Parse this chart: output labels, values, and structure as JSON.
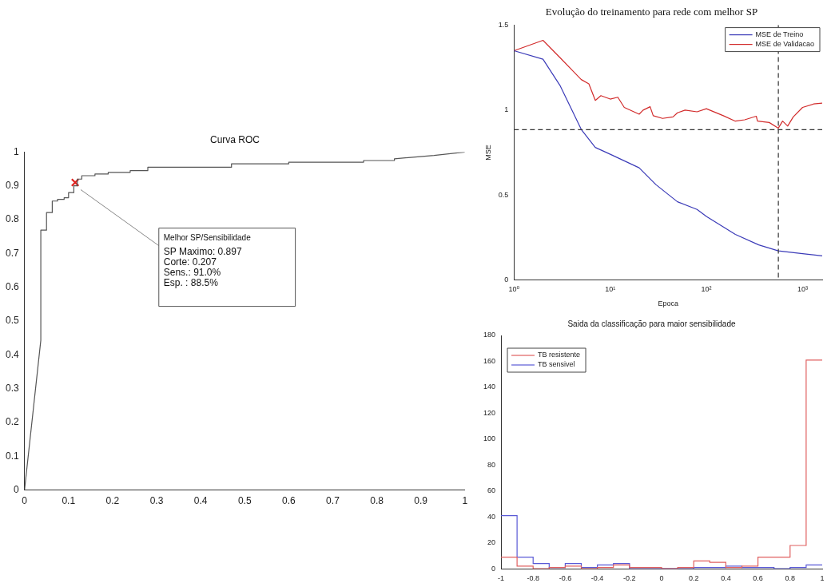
{
  "chart_data": [
    {
      "type": "line",
      "title": "Curva ROC",
      "xlim": [
        0,
        1
      ],
      "xticks": [
        0,
        0.1,
        0.2,
        0.3,
        0.4,
        0.5,
        0.6,
        0.7,
        0.8,
        0.9,
        1
      ],
      "ylim": [
        0,
        1
      ],
      "yticks": [
        0,
        0.1,
        0.2,
        0.3,
        0.4,
        0.5,
        0.6,
        0.7,
        0.8,
        0.9,
        1
      ],
      "grid": false,
      "legend": false,
      "series": [
        {
          "color": "#555555",
          "x": [
            0,
            0.037,
            0.037,
            0.05,
            0.05,
            0.063,
            0.063,
            0.075,
            0.075,
            0.09,
            0.09,
            0.1,
            0.1,
            0.112,
            0.112,
            0.12,
            0.12,
            0.13,
            0.13,
            0.16,
            0.16,
            0.19,
            0.19,
            0.24,
            0.24,
            0.28,
            0.28,
            0.47,
            0.47,
            0.6,
            0.6,
            0.77,
            0.77,
            0.84,
            0.84,
            0.93,
            1
          ],
          "values": [
            0,
            0.443,
            0.769,
            0.769,
            0.821,
            0.821,
            0.855,
            0.855,
            0.86,
            0.86,
            0.865,
            0.865,
            0.88,
            0.88,
            0.9,
            0.9,
            0.92,
            0.92,
            0.93,
            0.93,
            0.935,
            0.935,
            0.94,
            0.94,
            0.945,
            0.945,
            0.955,
            0.955,
            0.965,
            0.965,
            0.97,
            0.97,
            0.975,
            0.975,
            0.98,
            0.99,
            1
          ]
        },
        {
          "type": "scatter",
          "marker": "cross",
          "color": "#e0201c",
          "x": [
            0.115
          ],
          "values": [
            0.91
          ]
        }
      ],
      "annotations": [
        "Melhor SP/Sensibilidade",
        "SP Maximo: 0.897",
        "Corte: 0.207",
        "Sens.: 91.0%",
        "Esp. : 88.5%"
      ]
    },
    {
      "type": "line",
      "title": "Evolução do treinamento para rede com melhor SP",
      "xlabel": "Epoca",
      "ylabel": "MSE",
      "log": "x",
      "xlim": [
        1,
        1600
      ],
      "xticks": [
        {
          "value": 1,
          "label": "10⁰"
        },
        {
          "value": 10,
          "label": "10¹"
        },
        {
          "value": 100,
          "label": "10²"
        },
        {
          "value": 1000,
          "label": "10³"
        }
      ],
      "ylim": [
        0,
        1.5
      ],
      "yticks": [
        0,
        0.5,
        1,
        1.5
      ],
      "grid": false,
      "legend": "top right",
      "series": [
        {
          "name": "MSE de Treino",
          "color": "#3b3bb8",
          "x": [
            1,
            2,
            3,
            5,
            7,
            10,
            20,
            30,
            50,
            80,
            100,
            200,
            350,
            560,
            1000,
            1600
          ],
          "values": [
            1.35,
            1.3,
            1.146,
            0.886,
            0.78,
            0.74,
            0.66,
            0.56,
            0.46,
            0.415,
            0.374,
            0.268,
            0.206,
            0.171,
            0.154,
            0.141
          ]
        },
        {
          "name": "MSE de Validacao",
          "color": "#d22b2b",
          "x": [
            1,
            2,
            3,
            4,
            5,
            6,
            7,
            8,
            10,
            12,
            14,
            20,
            22,
            26,
            28,
            35,
            45,
            50,
            60,
            80,
            100,
            150,
            200,
            250,
            330,
            340,
            450,
            560,
            620,
            700,
            800,
            1000,
            1300,
            1600
          ],
          "values": [
            1.35,
            1.411,
            1.31,
            1.236,
            1.18,
            1.155,
            1.057,
            1.085,
            1.065,
            1.076,
            1.016,
            0.976,
            1.0,
            1.02,
            0.967,
            0.951,
            0.96,
            0.984,
            1.0,
            0.99,
            1.008,
            0.967,
            0.935,
            0.943,
            0.964,
            0.935,
            0.927,
            0.894,
            0.935,
            0.906,
            0.96,
            1.016,
            1.036,
            1.041
          ]
        }
      ],
      "ref_lines": [
        {
          "axis": "y",
          "value": 0.885,
          "line_style": "dashed",
          "color": "#333333"
        },
        {
          "axis": "x",
          "value": 560,
          "line_style": "dashed",
          "color": "#333333"
        }
      ]
    },
    {
      "type": "histogram",
      "title": "Saida da classificação para maior sensibilidade",
      "bins": [
        -1,
        -0.9,
        -0.8,
        -0.7,
        -0.6,
        -0.5,
        -0.4,
        -0.3,
        -0.2,
        -0.1,
        0,
        0.1,
        0.2,
        0.3,
        0.4,
        0.5,
        0.6,
        0.7,
        0.8,
        0.9,
        1
      ],
      "xlim": [
        -1,
        1
      ],
      "xticks": [
        -1,
        -0.8,
        -0.6,
        -0.4,
        -0.2,
        0,
        0.2,
        0.4,
        0.6,
        0.8,
        1
      ],
      "ylim": [
        0,
        180
      ],
      "yticks": [
        0,
        20,
        40,
        60,
        80,
        100,
        120,
        140,
        160,
        180
      ],
      "grid": false,
      "legend": "top left",
      "series": [
        {
          "name": "TB resistente",
          "color": "#e06060",
          "values": [
            9,
            2,
            0,
            1,
            2,
            0,
            1,
            3,
            1,
            1,
            0,
            1,
            6,
            5,
            1,
            2,
            9,
            9,
            18,
            161
          ]
        },
        {
          "name": "TB sensivel",
          "color": "#5a5ad6",
          "values": [
            41,
            9,
            4,
            1,
            4,
            1,
            3,
            4,
            0,
            0,
            0,
            0,
            1,
            1,
            2,
            1,
            1,
            0,
            1,
            3
          ]
        }
      ]
    }
  ]
}
